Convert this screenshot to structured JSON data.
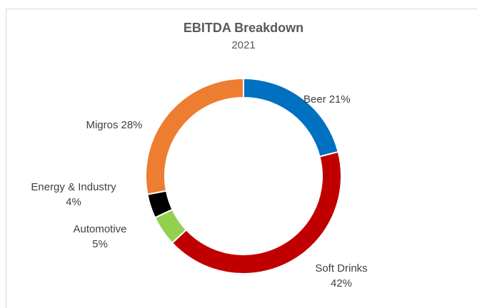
{
  "chart_data": {
    "type": "donut",
    "title": "EBITDA Breakdown",
    "subtitle": "2021",
    "categories": [
      "Beer",
      "Soft Drinks",
      "Automotive",
      "Energy & Industry",
      "Migros"
    ],
    "values": [
      21,
      42,
      5,
      4,
      28
    ],
    "value_labels": [
      "21%",
      "42%",
      "5%",
      "4%",
      "28%"
    ],
    "colors": [
      "#0070c0",
      "#c00000",
      "#92d050",
      "#000000",
      "#ed7d31"
    ]
  }
}
